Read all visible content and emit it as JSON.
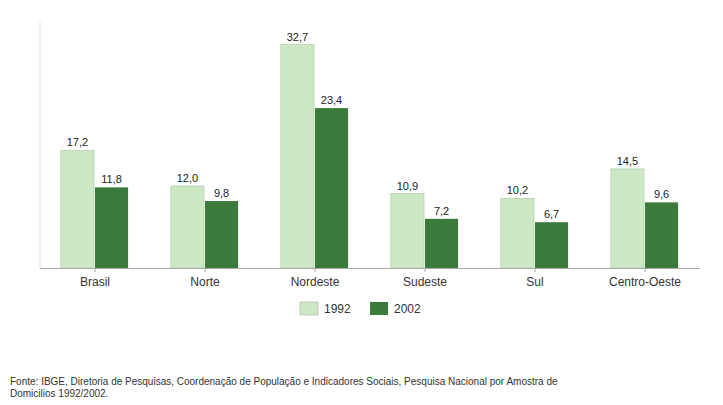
{
  "chart_data": {
    "type": "bar",
    "categories": [
      "Brasil",
      "Norte",
      "Nordeste",
      "Sudeste",
      "Sul",
      "Centro-Oeste"
    ],
    "series": [
      {
        "name": "1992",
        "color": "#cde8c4",
        "values": [
          17.2,
          12.0,
          32.7,
          10.9,
          10.2,
          14.5
        ],
        "value_labels": [
          "17,2",
          "12,0",
          "32,7",
          "10,9",
          "10,2",
          "14,5"
        ]
      },
      {
        "name": "2002",
        "color": "#3a7a3a",
        "values": [
          11.8,
          9.8,
          23.4,
          7.2,
          6.7,
          9.6
        ],
        "value_labels": [
          "11,8",
          "9,8",
          "23,4",
          "7,2",
          "6,7",
          "9,6"
        ]
      }
    ],
    "ylim": [
      0,
      36
    ],
    "data_labels": true,
    "tick_labels": "x",
    "grid": false,
    "legend": "bottom",
    "annotations": [
      "Fonte: IBGE, Diretoria de Pesquisas, Coordenação de População e Indicadores Sociais, Pesquisa Nacional por Amostra de\nDomicilios 1992/2002."
    ]
  }
}
